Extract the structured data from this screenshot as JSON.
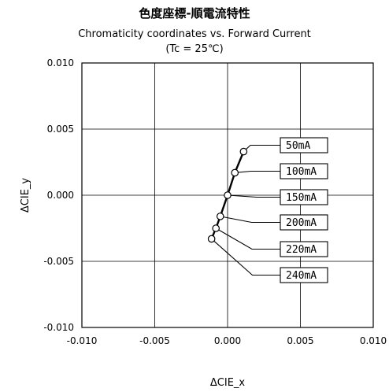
{
  "chart_data": {
    "type": "scatter",
    "title": "色度座標-順電流特性",
    "subtitle": "Chromaticity coordinates vs. Forward Current",
    "condition": "(Tc = 25℃)",
    "xlabel": "ΔCIE_x",
    "ylabel": "ΔCIE_y",
    "xlim": [
      -0.01,
      0.01
    ],
    "ylim": [
      -0.01,
      0.01
    ],
    "x_ticks": [
      "-0.010",
      "-0.005",
      "0.000",
      "0.005",
      "0.010"
    ],
    "y_ticks": [
      "0.010",
      "0.005",
      "0.000",
      "-0.005",
      "-0.010"
    ],
    "grid": true,
    "points": [
      {
        "label": "50mA",
        "x": 0.0011,
        "y": 0.0033
      },
      {
        "label": "100mA",
        "x": 0.0005,
        "y": 0.0017
      },
      {
        "label": "150mA",
        "x": 0.0,
        "y": 0.0
      },
      {
        "label": "200mA",
        "x": -0.0005,
        "y": -0.0016
      },
      {
        "label": "220mA",
        "x": -0.0008,
        "y": -0.0025
      },
      {
        "label": "240mA",
        "x": -0.0011,
        "y": -0.0033
      }
    ]
  }
}
